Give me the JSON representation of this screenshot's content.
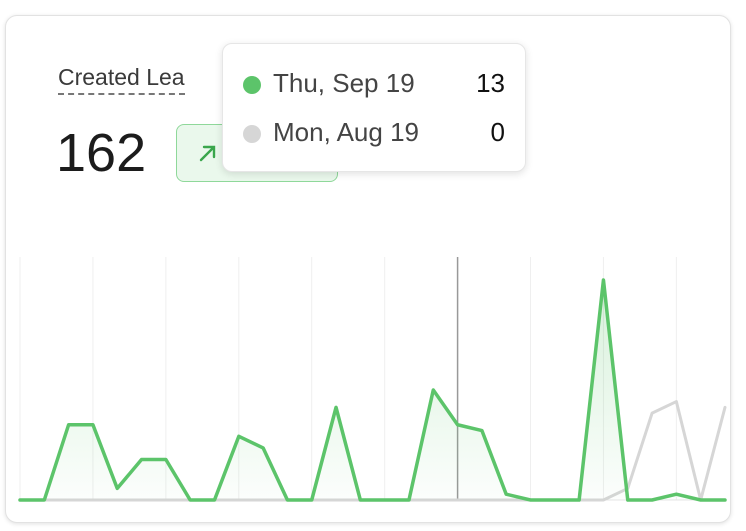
{
  "chart_data": {
    "type": "line",
    "title": "Created Lea",
    "total": 162,
    "series": [
      {
        "name": "Thu, Sep 19",
        "color": "#5cc46a",
        "values": [
          0,
          0,
          13,
          13,
          2,
          7,
          7,
          0,
          0,
          11,
          9,
          0,
          0,
          16,
          0,
          0,
          0,
          19,
          13,
          12,
          1,
          0,
          0,
          0,
          38,
          0,
          0,
          1,
          0,
          0
        ]
      },
      {
        "name": "Mon, Aug 19",
        "color": "#d6d6d6",
        "values": [
          0,
          0,
          0,
          0,
          0,
          0,
          0,
          0,
          0,
          0,
          0,
          0,
          0,
          0,
          0,
          0,
          0,
          0,
          0,
          0,
          0,
          0,
          0,
          0,
          0,
          2,
          15,
          17,
          0,
          16
        ]
      }
    ],
    "crosshair_index": 18,
    "grid": true,
    "grid_every": 3
  }
}
